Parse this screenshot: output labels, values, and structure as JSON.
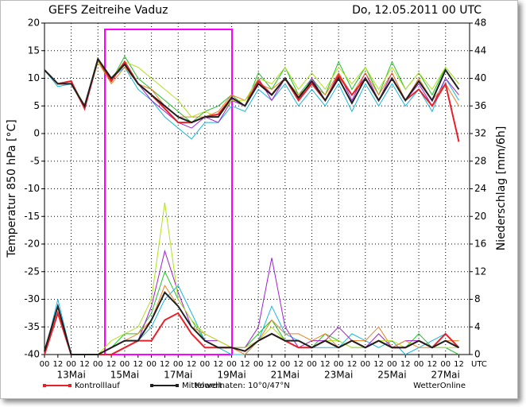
{
  "chart_data": {
    "type": "line",
    "title": "GEFS  Zeitreihe Vaduz",
    "date": "Do, 12.05.2011  00 UTC",
    "ylabel": "Temperatur 850 hPa [°C]",
    "y2label": "Niederschlag [mm/6h]",
    "categories": [
      "00",
      "12",
      "00",
      "12",
      "00",
      "12",
      "00",
      "12",
      "00",
      "12",
      "00",
      "12",
      "00",
      "12",
      "00",
      "12",
      "00",
      "12",
      "00",
      "12",
      "00",
      "12",
      "00",
      "12",
      "00",
      "12",
      "00",
      "12",
      "00",
      "12",
      "00",
      "12"
    ],
    "day_labels": [
      null,
      null,
      "13Mai",
      null,
      null,
      null,
      "15Mai",
      null,
      null,
      null,
      "17Mai",
      null,
      null,
      null,
      "19Mai",
      null,
      null,
      null,
      "21Mai",
      null,
      null,
      null,
      "23Mai",
      null,
      null,
      null,
      "25Mai",
      null,
      null,
      null,
      "27Mai",
      null
    ],
    "time_zone": "UTC",
    "ylim": [
      -40,
      20
    ],
    "yticks": [
      -40,
      -35,
      -30,
      -25,
      -20,
      -15,
      -10,
      -5,
      0,
      5,
      10,
      15,
      20
    ],
    "y2lim": [
      0,
      48
    ],
    "y2ticks": [
      0,
      4,
      8,
      12,
      16,
      20,
      24,
      28,
      32,
      36,
      40,
      44,
      48
    ],
    "grid": true,
    "series": [
      {
        "name": "Kontrolllauf",
        "color": "#e8202a",
        "values": [
          11.5,
          9,
          9.5,
          4.5,
          13.5,
          9.5,
          13,
          9,
          7,
          4.5,
          2,
          2,
          3,
          3.5,
          6.5,
          5,
          9.5,
          7,
          10,
          6,
          9,
          6,
          10.5,
          7,
          10,
          6,
          10,
          6,
          8,
          5,
          9,
          -1.5
        ],
        "y2_values": [
          0,
          6,
          0,
          0,
          0,
          0,
          1,
          2,
          2,
          5,
          6,
          3,
          1,
          1,
          1,
          0.5,
          2,
          3,
          2,
          1,
          1,
          2,
          1,
          2,
          1,
          2,
          1,
          1,
          2,
          1,
          3,
          1
        ]
      },
      {
        "name": "Mittelwert",
        "color": "#202020",
        "values": [
          11.5,
          9,
          9,
          5,
          13.5,
          10,
          12.5,
          9,
          7,
          5,
          3,
          2,
          3,
          3,
          6.5,
          5,
          9,
          7,
          10,
          6.5,
          9.5,
          6,
          10,
          5.5,
          10,
          6,
          10,
          6,
          9.5,
          6,
          11.5,
          8
        ],
        "y2_values": [
          0.5,
          7,
          0,
          0,
          0,
          1,
          2,
          2,
          5,
          9,
          7,
          4,
          2,
          1,
          1,
          0.5,
          2,
          3,
          2,
          2,
          1,
          2,
          1,
          2,
          1,
          2,
          1,
          1,
          2,
          1,
          2,
          1
        ]
      }
    ],
    "members": [
      {
        "color": "#22c02a",
        "values": [
          11.5,
          9,
          9.5,
          4.5,
          13,
          9.5,
          14,
          10,
          8,
          6,
          4,
          2,
          4,
          5,
          7,
          5,
          11,
          8,
          12,
          7,
          10,
          7,
          13,
          8,
          12,
          7,
          13,
          8,
          11,
          7,
          12,
          9
        ],
        "y2_values": [
          0,
          7,
          0,
          0,
          0,
          1,
          3,
          3,
          6,
          12,
          8,
          5,
          2,
          1,
          1,
          1,
          3,
          5,
          2,
          2,
          1,
          3,
          2,
          1,
          1,
          2,
          1,
          1,
          3,
          1,
          1,
          0
        ]
      },
      {
        "color": "#18b4e0",
        "values": [
          11.5,
          8.5,
          9,
          4.5,
          13.5,
          10,
          12,
          8,
          6,
          3,
          1,
          -1,
          2,
          2,
          5,
          4,
          8,
          6,
          9,
          5,
          8,
          5,
          9,
          4,
          9,
          5,
          9,
          5,
          8,
          4,
          10,
          6
        ],
        "y2_values": [
          0,
          8,
          0,
          0,
          0,
          0,
          1,
          2,
          4,
          8,
          10,
          6,
          2,
          1,
          0,
          0,
          2,
          7,
          3,
          2,
          1,
          1,
          1,
          3,
          2,
          1,
          2,
          0,
          1,
          2,
          3,
          1
        ]
      },
      {
        "color": "#a020d0",
        "values": [
          11.5,
          9,
          9,
          5,
          13.5,
          10,
          13,
          9,
          6,
          4,
          2,
          1,
          3,
          2,
          6,
          5,
          10,
          6,
          10,
          6,
          10,
          6,
          11,
          6,
          11,
          6,
          11,
          6,
          9,
          5,
          10,
          7
        ],
        "y2_values": [
          0,
          6,
          0,
          0,
          0,
          0,
          1,
          2,
          7,
          15,
          9,
          4,
          2,
          2,
          1,
          1,
          4,
          14,
          4,
          1,
          2,
          2,
          4,
          2,
          1,
          3,
          1,
          2,
          2,
          1,
          2,
          1
        ]
      },
      {
        "color": "#f08020",
        "values": [
          11.5,
          9,
          9,
          4.5,
          13,
          9,
          12,
          9,
          8,
          5,
          3,
          3,
          3,
          4,
          7,
          6,
          9,
          8,
          10,
          7,
          9,
          7,
          11,
          7,
          11,
          7,
          11,
          6,
          10,
          6,
          9,
          5
        ],
        "y2_values": [
          0,
          7,
          0,
          0,
          0,
          1,
          2,
          3,
          5,
          10,
          7,
          4,
          3,
          2,
          1,
          0,
          2,
          5,
          3,
          3,
          2,
          3,
          1,
          2,
          2,
          4,
          1,
          2,
          1,
          1,
          2,
          2
        ]
      },
      {
        "color": "#b0e020",
        "values": [
          11.5,
          9,
          9.5,
          5,
          13,
          10,
          13,
          12,
          10,
          8,
          6,
          3,
          4,
          3,
          6,
          6,
          10,
          9,
          12,
          8,
          11,
          8,
          12,
          9,
          12,
          8,
          12,
          8,
          11,
          8,
          12,
          9
        ],
        "y2_values": [
          0,
          6,
          0,
          0,
          0,
          2,
          3,
          4,
          8,
          22,
          8,
          5,
          3,
          2,
          1,
          1,
          2,
          4,
          2,
          2,
          1,
          2,
          2,
          1,
          1,
          2,
          2,
          1,
          2,
          1,
          1,
          1
        ]
      }
    ],
    "coordinates": "Koordinaten: 10°0/47°N",
    "source": "WetterOnline"
  }
}
